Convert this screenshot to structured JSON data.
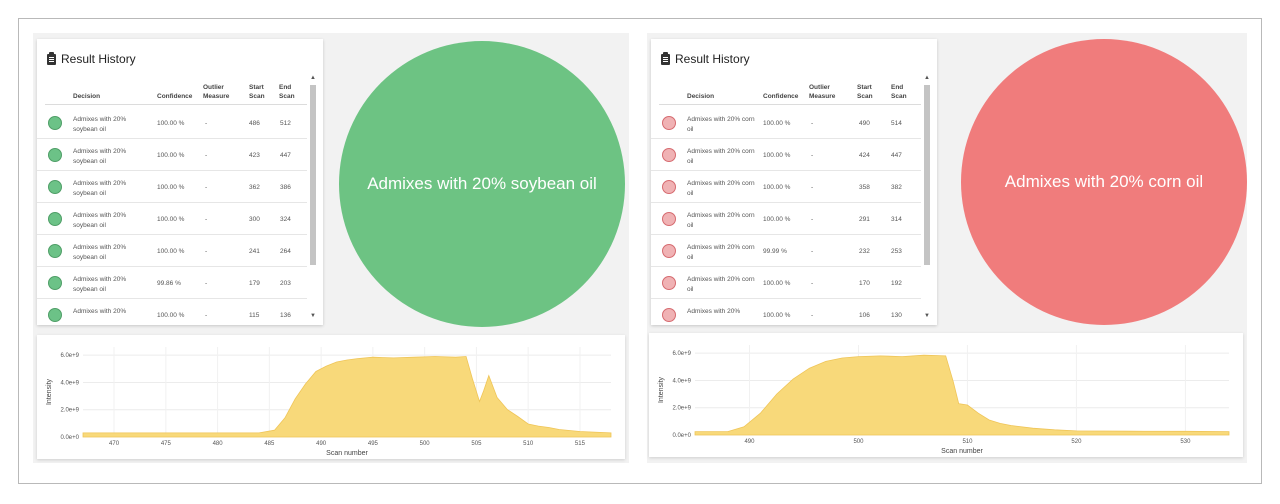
{
  "left": {
    "history_title": "Result History",
    "columns": [
      "Decision",
      "Confidence",
      "Outlier Measure",
      "Start Scan",
      "End Scan"
    ],
    "dot_color": "#6cc287",
    "rows": [
      {
        "decision": "Admixes with 20% soybean oil",
        "confidence": "100.00 %",
        "outlier": "-",
        "start": "486",
        "end": "512"
      },
      {
        "decision": "Admixes with 20% soybean oil",
        "confidence": "100.00 %",
        "outlier": "-",
        "start": "423",
        "end": "447"
      },
      {
        "decision": "Admixes with 20% soybean oil",
        "confidence": "100.00 %",
        "outlier": "-",
        "start": "362",
        "end": "386"
      },
      {
        "decision": "Admixes with 20% soybean oil",
        "confidence": "100.00 %",
        "outlier": "-",
        "start": "300",
        "end": "324"
      },
      {
        "decision": "Admixes with 20% soybean oil",
        "confidence": "100.00 %",
        "outlier": "-",
        "start": "241",
        "end": "264"
      },
      {
        "decision": "Admixes with 20% soybean oil",
        "confidence": "99.86 %",
        "outlier": "-",
        "start": "179",
        "end": "203"
      },
      {
        "decision": "Admixes with 20%",
        "confidence": "100.00 %",
        "outlier": "-",
        "start": "115",
        "end": "136"
      }
    ],
    "result_label": "Admixes with 20% soybean oil",
    "result_color": "#6dc383"
  },
  "right": {
    "history_title": "Result History",
    "columns": [
      "Decision",
      "Confidence",
      "Outlier Measure",
      "Start Scan",
      "End Scan"
    ],
    "dot_color": "#f0b2b4",
    "rows": [
      {
        "decision": "Admixes with 20% corn oil",
        "confidence": "100.00 %",
        "outlier": "-",
        "start": "490",
        "end": "514"
      },
      {
        "decision": "Admixes with 20% corn oil",
        "confidence": "100.00 %",
        "outlier": "-",
        "start": "424",
        "end": "447"
      },
      {
        "decision": "Admixes with 20% corn oil",
        "confidence": "100.00 %",
        "outlier": "-",
        "start": "358",
        "end": "382"
      },
      {
        "decision": "Admixes with 20% corn oil",
        "confidence": "100.00 %",
        "outlier": "-",
        "start": "291",
        "end": "314"
      },
      {
        "decision": "Admixes with 20% corn oil",
        "confidence": "99.99 %",
        "outlier": "-",
        "start": "232",
        "end": "253"
      },
      {
        "decision": "Admixes with 20% corn oil",
        "confidence": "100.00 %",
        "outlier": "-",
        "start": "170",
        "end": "192"
      },
      {
        "decision": "Admixes with 20%",
        "confidence": "100.00 %",
        "outlier": "-",
        "start": "106",
        "end": "130"
      }
    ],
    "result_label": "Admixes with 20% corn oil",
    "result_color": "#f07c7c"
  },
  "chart_data": [
    {
      "type": "area",
      "title": "",
      "xlabel": "Scan number",
      "ylabel": "Intensity",
      "xlim": [
        467,
        518
      ],
      "ylim": [
        0,
        6600000000.0
      ],
      "xticks": [
        470,
        475,
        480,
        485,
        490,
        495,
        500,
        505,
        510,
        515
      ],
      "xtick_labels": [
        "470",
        "475",
        "480",
        "485",
        "490",
        "495",
        "500",
        "505",
        "510",
        "515"
      ],
      "yticks": [
        0,
        2000000000.0,
        4000000000.0,
        6000000000.0
      ],
      "ytick_labels": [
        "0.0e+0",
        "2.0e+9",
        "4.0e+9",
        "6.0e+9"
      ],
      "fill_color": "#f8d97a",
      "series": [
        {
          "name": "Intensity",
          "x": [
            467,
            470,
            475,
            480,
            484,
            485.5,
            486.5,
            487.5,
            488.5,
            489.5,
            490.5,
            491.5,
            492.5,
            493.5,
            495,
            497,
            499,
            501,
            503,
            504,
            504.6,
            505.3,
            505.7,
            506.2,
            507,
            508,
            509,
            510,
            511,
            512,
            513,
            515,
            518
          ],
          "y": [
            300000000.0,
            300000000.0,
            300000000.0,
            300000000.0,
            300000000.0,
            500000000.0,
            1400000000.0,
            2800000000.0,
            3900000000.0,
            4800000000.0,
            5200000000.0,
            5500000000.0,
            5650000000.0,
            5750000000.0,
            5850000000.0,
            5800000000.0,
            5850000000.0,
            5900000000.0,
            5850000000.0,
            5900000000.0,
            4300000000.0,
            2600000000.0,
            3400000000.0,
            4500000000.0,
            2900000000.0,
            2000000000.0,
            1500000000.0,
            950000000.0,
            800000000.0,
            700000000.0,
            550000000.0,
            400000000.0,
            300000000.0
          ]
        }
      ]
    },
    {
      "type": "area",
      "title": "",
      "xlabel": "Scan number",
      "ylabel": "Intensity",
      "xlim": [
        485,
        534
      ],
      "ylim": [
        0,
        6600000000.0
      ],
      "xticks": [
        490,
        500,
        510,
        520,
        530
      ],
      "xtick_labels": [
        "490",
        "500",
        "510",
        "520",
        "530"
      ],
      "yticks": [
        0,
        2000000000.0,
        4000000000.0,
        6000000000.0
      ],
      "ytick_labels": [
        "0.0e+0",
        "2.0e+9",
        "4.0e+9",
        "6.0e+9"
      ],
      "fill_color": "#f8d97a",
      "series": [
        {
          "name": "Intensity",
          "x": [
            485,
            488,
            489.5,
            491,
            492.5,
            494,
            495.5,
            497,
            498.5,
            500,
            502,
            504,
            506,
            508,
            508.7,
            509.2,
            510,
            511,
            512,
            513,
            514,
            516,
            518,
            520,
            525,
            530,
            534
          ],
          "y": [
            250000000.0,
            250000000.0,
            600000000.0,
            1600000000.0,
            3000000000.0,
            4100000000.0,
            4900000000.0,
            5400000000.0,
            5650000000.0,
            5750000000.0,
            5800000000.0,
            5750000000.0,
            5850000000.0,
            5800000000.0,
            3900000000.0,
            2300000000.0,
            2200000000.0,
            1600000000.0,
            1100000000.0,
            850000000.0,
            700000000.0,
            500000000.0,
            380000000.0,
            300000000.0,
            280000000.0,
            270000000.0,
            250000000.0
          ]
        }
      ]
    }
  ]
}
